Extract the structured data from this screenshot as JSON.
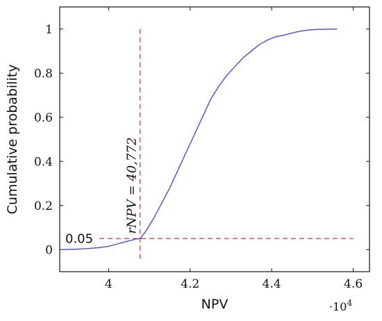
{
  "chart_data": {
    "type": "line",
    "xlabel": "NPV",
    "ylabel": "Cumulative probability",
    "x_multiplier_label": "·10",
    "x_multiplier_exponent": "4",
    "x_unit_scale": 10000,
    "xlim": [
      3.88,
      4.64
    ],
    "ylim": [
      -0.1,
      1.1
    ],
    "x_ticks": [
      4,
      4.2,
      4.4,
      4.6
    ],
    "x_tick_labels": [
      "4",
      "4.2",
      "4.4",
      "4.6"
    ],
    "y_ticks": [
      0,
      0.2,
      0.4,
      0.6,
      0.8,
      1
    ],
    "y_tick_labels": [
      "0",
      "0.2",
      "0.4",
      "0.6",
      "0.8",
      "1"
    ],
    "grid": false,
    "series": [
      {
        "color": "#5555ee",
        "x": [
          3.885,
          3.92,
          3.95,
          3.98,
          4.0,
          4.02,
          4.04,
          4.055,
          4.065,
          4.0772,
          4.09,
          4.11,
          4.13,
          4.15,
          4.17,
          4.19,
          4.21,
          4.23,
          4.25,
          4.27,
          4.29,
          4.31,
          4.33,
          4.35,
          4.37,
          4.39,
          4.41,
          4.43,
          4.45,
          4.47,
          4.49,
          4.51,
          4.53,
          4.56
        ],
        "y": [
          0.0,
          0.002,
          0.005,
          0.01,
          0.015,
          0.025,
          0.035,
          0.042,
          0.047,
          0.05,
          0.08,
          0.14,
          0.21,
          0.28,
          0.36,
          0.44,
          0.52,
          0.6,
          0.68,
          0.74,
          0.79,
          0.83,
          0.87,
          0.9,
          0.93,
          0.95,
          0.965,
          0.972,
          0.982,
          0.99,
          0.995,
          0.998,
          0.999,
          1.0
        ]
      }
    ],
    "reference_lines": {
      "vertical": {
        "x": 4.0772,
        "label": "rNPV = 40,772",
        "color": "#e05050"
      },
      "horizontal": {
        "y": 0.05,
        "label": "0.05",
        "color": "#e05050"
      }
    }
  }
}
